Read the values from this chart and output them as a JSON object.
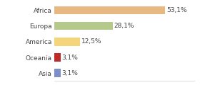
{
  "categories": [
    "Africa",
    "Europa",
    "America",
    "Oceania",
    "Asia"
  ],
  "values": [
    53.1,
    28.1,
    12.5,
    3.1,
    3.1
  ],
  "labels": [
    "53,1%",
    "28,1%",
    "12,5%",
    "3,1%",
    "3,1%"
  ],
  "bar_colors": [
    "#e8b882",
    "#b5c98a",
    "#f5d57a",
    "#c0292a",
    "#7b8ec8"
  ],
  "background_color": "#ffffff",
  "xlim": [
    0,
    67
  ],
  "bar_height": 0.52,
  "label_fontsize": 6.5,
  "tick_fontsize": 6.5
}
